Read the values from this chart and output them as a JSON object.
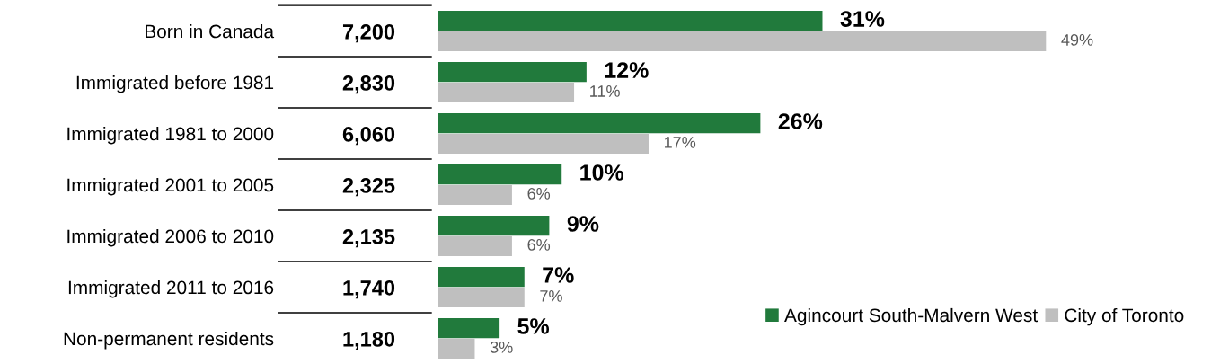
{
  "chart_data": {
    "type": "bar",
    "orientation": "horizontal",
    "tick_labels": "y",
    "legend": "bottom right",
    "grid": false,
    "categories": [
      "Born in Canada",
      "Immigrated before 1981",
      "Immigrated 1981 to 2000",
      "Immigrated 2001 to 2005",
      "Immigrated 2006 to 2010",
      "Immigrated 2011 to 2016",
      "Non-permanent residents"
    ],
    "series": [
      {
        "name": "Agincourt South-Malvern West",
        "color": "#217a3c",
        "values": [
          31,
          12,
          26,
          10,
          9,
          7,
          5
        ],
        "value_labels": [
          "31%",
          "12%",
          "26%",
          "10%",
          "9%",
          "7%",
          "5%"
        ]
      },
      {
        "name": "City of Toronto",
        "color": "#bfbfbf",
        "values": [
          49,
          11,
          17,
          6,
          6,
          7,
          3
        ],
        "value_labels": [
          "49%",
          "11%",
          "17%",
          "6%",
          "6%",
          "7%",
          "3%"
        ]
      }
    ],
    "annotations": [
      "7,200",
      "2,830",
      "6,060",
      "2,325",
      "2,135",
      "1,740",
      "1,180"
    ]
  }
}
